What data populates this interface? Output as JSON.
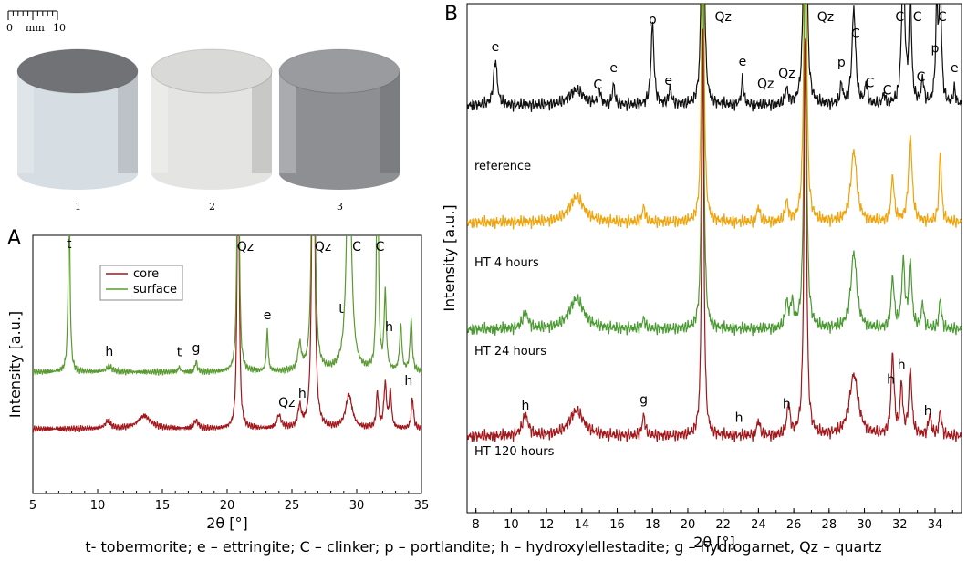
{
  "panel_a_label": "A",
  "panel_b_label": "B",
  "photo": {
    "scale_unit": "mm",
    "scale_start": "0",
    "scale_end": "10",
    "samples": [
      {
        "num": "1",
        "color": "#d6dde3",
        "top_color": "#707276"
      },
      {
        "num": "2",
        "color": "#e4e5e3",
        "top_color": "#d9dad8"
      },
      {
        "num": "3",
        "color": "#8d8f93",
        "top_color": "#999b9e"
      }
    ]
  },
  "caption": "t- tobermorite; e – ettringite; C – clinker; p – portlandite; h – hydroxylellestadite; g – hydrogarnet, Qz – quartz",
  "chart_data": [
    {
      "type": "line",
      "panel": "A",
      "xlabel": "2θ [°]",
      "ylabel": "Intensity [a.u.]",
      "xlim": [
        5,
        35
      ],
      "x_ticks": [
        5,
        10,
        15,
        20,
        25,
        30,
        35
      ],
      "legend_position": "top-left",
      "series": [
        {
          "name": "core",
          "color": "#a3171b",
          "baseline": 0.25,
          "peaks": [
            [
              10.8,
              0.03,
              0.25
            ],
            [
              13.6,
              0.05,
              0.6
            ],
            [
              17.6,
              0.03,
              0.2
            ],
            [
              20.85,
              1.4,
              0.08
            ],
            [
              24.0,
              0.05,
              0.2
            ],
            [
              25.6,
              0.08,
              0.15
            ],
            [
              26.65,
              2.0,
              0.1
            ],
            [
              29.4,
              0.13,
              0.3
            ],
            [
              31.6,
              0.14,
              0.1
            ],
            [
              32.2,
              0.17,
              0.12
            ],
            [
              32.6,
              0.14,
              0.1
            ],
            [
              34.3,
              0.12,
              0.1
            ]
          ]
        },
        {
          "name": "surface",
          "color": "#5a9a32",
          "baseline": 0.47,
          "peaks": [
            [
              7.8,
              0.72,
              0.08
            ],
            [
              10.9,
              0.02,
              0.3
            ],
            [
              16.3,
              0.02,
              0.1
            ],
            [
              17.6,
              0.04,
              0.1
            ],
            [
              20.85,
              1.4,
              0.08
            ],
            [
              23.1,
              0.16,
              0.08
            ],
            [
              25.6,
              0.1,
              0.15
            ],
            [
              26.65,
              2.0,
              0.1
            ],
            [
              29.4,
              1.0,
              0.2
            ],
            [
              31.6,
              1.0,
              0.08
            ],
            [
              32.2,
              0.3,
              0.1
            ],
            [
              33.4,
              0.18,
              0.1
            ],
            [
              34.2,
              0.2,
              0.1
            ]
          ]
        }
      ],
      "annotations": [
        {
          "text": "t",
          "x": 7.8
        },
        {
          "text": "h",
          "x": 10.9
        },
        {
          "text": "t",
          "x": 16.3
        },
        {
          "text": "g",
          "x": 17.6
        },
        {
          "text": "Qz",
          "x": 21.4
        },
        {
          "text": "e",
          "x": 23.1
        },
        {
          "text": "Qz",
          "x": 24.6
        },
        {
          "text": "h",
          "x": 25.8
        },
        {
          "text": "Qz",
          "x": 27.4
        },
        {
          "text": "t",
          "x": 28.8
        },
        {
          "text": "C",
          "x": 30.0
        },
        {
          "text": "C",
          "x": 31.8
        },
        {
          "text": "h",
          "x": 32.5
        },
        {
          "text": "h",
          "x": 34.0
        }
      ]
    },
    {
      "type": "line",
      "panel": "B",
      "xlabel": "2θ [°]",
      "ylabel": "Intensity [a.u.]",
      "xlim": [
        7.5,
        35.5
      ],
      "x_ticks": [
        8,
        10,
        12,
        14,
        16,
        18,
        20,
        22,
        24,
        26,
        28,
        30,
        32,
        34
      ],
      "series": [
        {
          "name": "reference",
          "color": "#111111",
          "baseline": 0.8,
          "peaks": [
            [
              9.1,
              0.09,
              0.12
            ],
            [
              13.7,
              0.03,
              0.5
            ],
            [
              15.0,
              0.03,
              0.08
            ],
            [
              15.8,
              0.04,
              0.08
            ],
            [
              18.0,
              0.16,
              0.1
            ],
            [
              19.0,
              0.03,
              0.1
            ],
            [
              20.85,
              0.8,
              0.07
            ],
            [
              23.1,
              0.05,
              0.08
            ],
            [
              25.6,
              0.03,
              0.1
            ],
            [
              26.65,
              0.8,
              0.08
            ],
            [
              28.7,
              0.04,
              0.08
            ],
            [
              29.4,
              0.19,
              0.12
            ],
            [
              30.1,
              0.04,
              0.08
            ],
            [
              31.1,
              0.02,
              0.08
            ],
            [
              32.2,
              0.3,
              0.1
            ],
            [
              32.6,
              0.22,
              0.08
            ],
            [
              33.3,
              0.05,
              0.08
            ],
            [
              34.1,
              0.18,
              0.08
            ],
            [
              34.3,
              0.22,
              0.08
            ],
            [
              35.1,
              0.03,
              0.08
            ]
          ]
        },
        {
          "name": "HT 4 hours",
          "color": "#f0a30a",
          "baseline": 0.57,
          "peaks": [
            [
              13.7,
              0.05,
              0.5
            ],
            [
              17.5,
              0.03,
              0.1
            ],
            [
              20.85,
              0.8,
              0.07
            ],
            [
              24.0,
              0.03,
              0.1
            ],
            [
              25.6,
              0.04,
              0.1
            ],
            [
              26.65,
              0.8,
              0.08
            ],
            [
              29.4,
              0.14,
              0.2
            ],
            [
              31.6,
              0.09,
              0.1
            ],
            [
              32.6,
              0.17,
              0.12
            ],
            [
              34.3,
              0.14,
              0.08
            ]
          ]
        },
        {
          "name": "HT 24 hours",
          "color": "#4a9a32",
          "baseline": 0.36,
          "peaks": [
            [
              10.8,
              0.03,
              0.2
            ],
            [
              13.7,
              0.06,
              0.5
            ],
            [
              17.5,
              0.02,
              0.1
            ],
            [
              20.85,
              0.8,
              0.07
            ],
            [
              25.6,
              0.05,
              0.1
            ],
            [
              25.9,
              0.05,
              0.1
            ],
            [
              26.65,
              0.8,
              0.08
            ],
            [
              29.4,
              0.15,
              0.2
            ],
            [
              31.6,
              0.1,
              0.1
            ],
            [
              32.2,
              0.13,
              0.1
            ],
            [
              32.6,
              0.13,
              0.1
            ],
            [
              33.3,
              0.05,
              0.08
            ],
            [
              34.3,
              0.06,
              0.08
            ]
          ]
        },
        {
          "name": "HT 120 hours",
          "color": "#a3171b",
          "baseline": 0.15,
          "peaks": [
            [
              10.8,
              0.04,
              0.2
            ],
            [
              13.7,
              0.05,
              0.5
            ],
            [
              17.5,
              0.04,
              0.1
            ],
            [
              20.85,
              0.8,
              0.07
            ],
            [
              24.0,
              0.03,
              0.1
            ],
            [
              25.7,
              0.06,
              0.1
            ],
            [
              26.65,
              0.8,
              0.08
            ],
            [
              29.4,
              0.12,
              0.3
            ],
            [
              31.6,
              0.16,
              0.1
            ],
            [
              32.1,
              0.1,
              0.08
            ],
            [
              32.6,
              0.13,
              0.1
            ],
            [
              33.7,
              0.04,
              0.1
            ],
            [
              34.3,
              0.05,
              0.08
            ]
          ]
        }
      ],
      "annotations": [
        {
          "text": "Qz",
          "x": 22.0,
          "row": "top"
        },
        {
          "text": "Qz",
          "x": 27.8,
          "row": "top"
        },
        {
          "text": "C",
          "x": 32.0,
          "row": "top"
        },
        {
          "text": "C",
          "x": 33.0,
          "row": "top"
        },
        {
          "text": "C",
          "x": 34.4,
          "row": "top"
        },
        {
          "text": "p",
          "x": 18.0,
          "row": "ref"
        },
        {
          "text": "e",
          "x": 9.1,
          "row": "ref"
        },
        {
          "text": "C",
          "x": 14.9,
          "row": "ref"
        },
        {
          "text": "e",
          "x": 15.8,
          "row": "ref"
        },
        {
          "text": "e",
          "x": 18.9,
          "row": "ref"
        },
        {
          "text": "e",
          "x": 23.1,
          "row": "ref"
        },
        {
          "text": "Qz",
          "x": 24.4,
          "row": "ref"
        },
        {
          "text": "Qz",
          "x": 25.6,
          "row": "ref"
        },
        {
          "text": "p",
          "x": 28.7,
          "row": "ref"
        },
        {
          "text": "C",
          "x": 29.5,
          "row": "ref"
        },
        {
          "text": "C",
          "x": 30.3,
          "row": "ref"
        },
        {
          "text": "C",
          "x": 31.3,
          "row": "ref"
        },
        {
          "text": "C",
          "x": 33.2,
          "row": "ref"
        },
        {
          "text": "p",
          "x": 34.0,
          "row": "ref"
        },
        {
          "text": "e",
          "x": 35.1,
          "row": "ref"
        },
        {
          "text": "h",
          "x": 10.8,
          "row": "h120"
        },
        {
          "text": "g",
          "x": 17.5,
          "row": "h120"
        },
        {
          "text": "h",
          "x": 22.9,
          "row": "h120"
        },
        {
          "text": "h",
          "x": 25.6,
          "row": "h120"
        },
        {
          "text": "h",
          "x": 31.5,
          "row": "h120"
        },
        {
          "text": "h",
          "x": 32.1,
          "row": "h120"
        },
        {
          "text": "h",
          "x": 33.6,
          "row": "h120"
        }
      ]
    }
  ]
}
